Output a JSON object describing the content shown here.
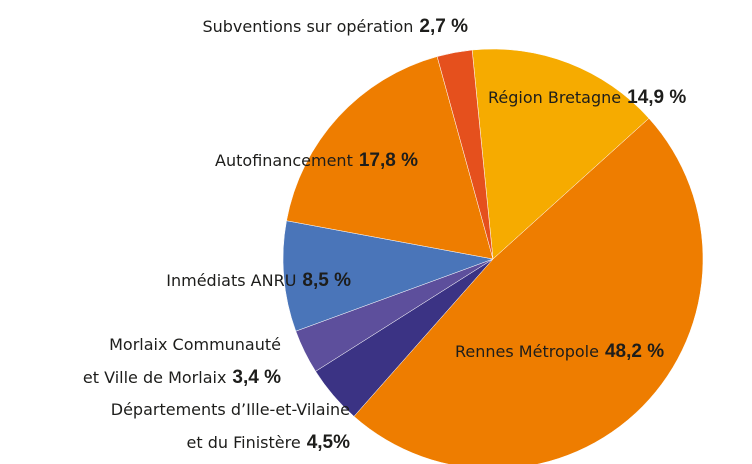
{
  "chart_data": {
    "type": "pie",
    "categories": [
      [
        "Région Bretagne"
      ],
      [
        "Rennes Métropole"
      ],
      [
        "Départements d’Ille-et-Vilaine",
        "et du Finistère"
      ],
      [
        "Morlaix Communauté",
        "et Ville de Morlaix"
      ],
      [
        "Inmédiats ANRU"
      ],
      [
        "Autofinancement"
      ],
      [
        "Subventions sur opération"
      ]
    ],
    "values": [
      14.9,
      48.2,
      4.5,
      3.4,
      8.5,
      17.8,
      2.7
    ],
    "value_labels": [
      "14,9 %",
      "48,2 %",
      "4,5%",
      "3,4 %",
      "8,5 %",
      "17,8 %",
      "2,7 %"
    ],
    "colors": [
      "#f6ab00",
      "#ee7d00",
      "#3b3384",
      "#5d4f9c",
      "#4a75b9",
      "#ee7d00",
      "#e5501d"
    ]
  }
}
